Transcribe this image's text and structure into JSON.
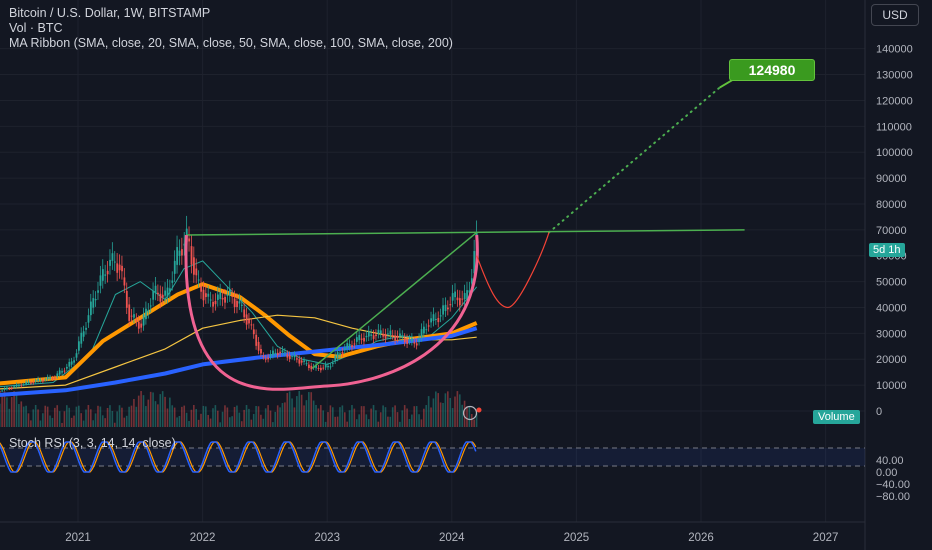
{
  "header": {
    "title_line": "Bitcoin / U.S. Dollar, 1W, BITSTAMP",
    "volume_line": "Vol · BTC",
    "ribbon_line": "MA Ribbon (SMA, close, 20, SMA, close, 50, SMA, close, 100, SMA, close, 200)"
  },
  "currency_button": "USD",
  "price_tag": "5d 1h",
  "volume_tag": "Volume",
  "target_label": "124980",
  "rsi_label": "Stoch RSI (3, 3, 14, 14, close)",
  "colors": {
    "background": "#131722",
    "up": "#26a69a",
    "down": "#ef5350",
    "ma20": "#26a69a",
    "ma50": "#ff9800",
    "ma100": "#f5c542",
    "ma200": "#2962ff",
    "trend": "#4caf50",
    "cup": "#f06292",
    "projection": "#f44336",
    "k_line": "#2962ff",
    "d_line": "#ff9800"
  },
  "chart_data": [
    {
      "type": "line",
      "title": "Bitcoin / U.S. Dollar, 1W, BITSTAMP",
      "y_axis_ticks": [
        0,
        10000,
        20000,
        30000,
        40000,
        50000,
        60000,
        70000,
        80000,
        90000,
        100000,
        110000,
        120000,
        130000,
        140000
      ],
      "x_axis_ticks": [
        "2021",
        "2022",
        "2023",
        "2024",
        "2025",
        "2026",
        "2027"
      ],
      "ylim": [
        0,
        140000
      ],
      "price": {
        "x": [
          2020.0,
          2020.3,
          2020.6,
          2020.8,
          2020.95,
          2021.05,
          2021.15,
          2021.25,
          2021.33,
          2021.4,
          2021.5,
          2021.6,
          2021.7,
          2021.8,
          2021.87,
          2021.95,
          2022.05,
          2022.2,
          2022.3,
          2022.4,
          2022.47,
          2022.6,
          2022.75,
          2022.88,
          2023.0,
          2023.1,
          2023.25,
          2023.4,
          2023.55,
          2023.7,
          2023.8,
          2023.9,
          2024.0,
          2024.1,
          2024.15,
          2024.2
        ],
        "values": [
          8000,
          7000,
          11000,
          13000,
          19000,
          33000,
          48000,
          58000,
          56000,
          37000,
          33000,
          46000,
          44000,
          62000,
          67000,
          49000,
          42000,
          45000,
          40000,
          30000,
          20000,
          23000,
          20000,
          16500,
          17000,
          23000,
          28000,
          30000,
          29000,
          26000,
          34000,
          37000,
          44000,
          43000,
          52000,
          68000
        ]
      },
      "series": [
        {
          "name": "SMA 20",
          "x": [
            2020.0,
            2020.8,
            2021.1,
            2021.3,
            2021.5,
            2021.7,
            2021.85,
            2022.0,
            2022.2,
            2022.4,
            2022.6,
            2022.8,
            2023.0,
            2023.2,
            2023.4,
            2023.6,
            2023.8,
            2024.0,
            2024.2
          ],
          "values": [
            8000,
            11000,
            22000,
            45000,
            50000,
            43000,
            55000,
            58000,
            48000,
            38000,
            25000,
            20000,
            18000,
            22000,
            27000,
            29000,
            28000,
            36000,
            48000
          ]
        },
        {
          "name": "SMA 50",
          "x": [
            2020.0,
            2020.9,
            2021.2,
            2021.5,
            2021.8,
            2022.0,
            2022.3,
            2022.5,
            2022.7,
            2022.9,
            2023.1,
            2023.4,
            2023.7,
            2024.0,
            2024.2
          ],
          "values": [
            9000,
            13000,
            27000,
            36000,
            45000,
            49000,
            44000,
            37000,
            29000,
            22000,
            21000,
            25000,
            28000,
            30000,
            34000
          ]
        },
        {
          "name": "SMA 100",
          "x": [
            2020.0,
            2020.9,
            2021.3,
            2021.7,
            2022.0,
            2022.3,
            2022.6,
            2022.9,
            2023.2,
            2023.5,
            2023.8,
            2024.0,
            2024.2
          ],
          "values": [
            7500,
            10000,
            17000,
            24000,
            32000,
            35000,
            37000,
            36000,
            32000,
            29000,
            27500,
            27500,
            28500
          ]
        },
        {
          "name": "SMA 200",
          "x": [
            2020.0,
            2020.9,
            2021.3,
            2021.7,
            2022.0,
            2022.5,
            2023.0,
            2023.5,
            2024.0,
            2024.2
          ],
          "values": [
            5000,
            8000,
            11000,
            14500,
            18000,
            21000,
            23500,
            26000,
            29000,
            32000
          ]
        }
      ],
      "annotations": {
        "resistance": {
          "x": [
            2021.87,
            2026.35
          ],
          "values": [
            68000,
            70000
          ]
        },
        "rising_trend": {
          "x": [
            2022.88,
            2024.2
          ],
          "values": [
            16500,
            69000
          ]
        },
        "projection_path": {
          "x": [
            2024.2,
            2024.3,
            2024.45,
            2024.6,
            2024.72,
            2024.78
          ],
          "values": [
            60000,
            47000,
            40000,
            47000,
            60000,
            69000
          ]
        },
        "target_dotted": {
          "x": [
            2024.78,
            2026.15
          ],
          "values": [
            69000,
            124980
          ]
        },
        "target_value": 124980
      }
    },
    {
      "type": "line",
      "title": "Stoch RSI (3, 3, 14, 14, close)",
      "y_axis_ticks": [
        -80,
        -40,
        0,
        40
      ],
      "ylim": [
        -90,
        70
      ],
      "bands": [
        80,
        20
      ]
    }
  ]
}
